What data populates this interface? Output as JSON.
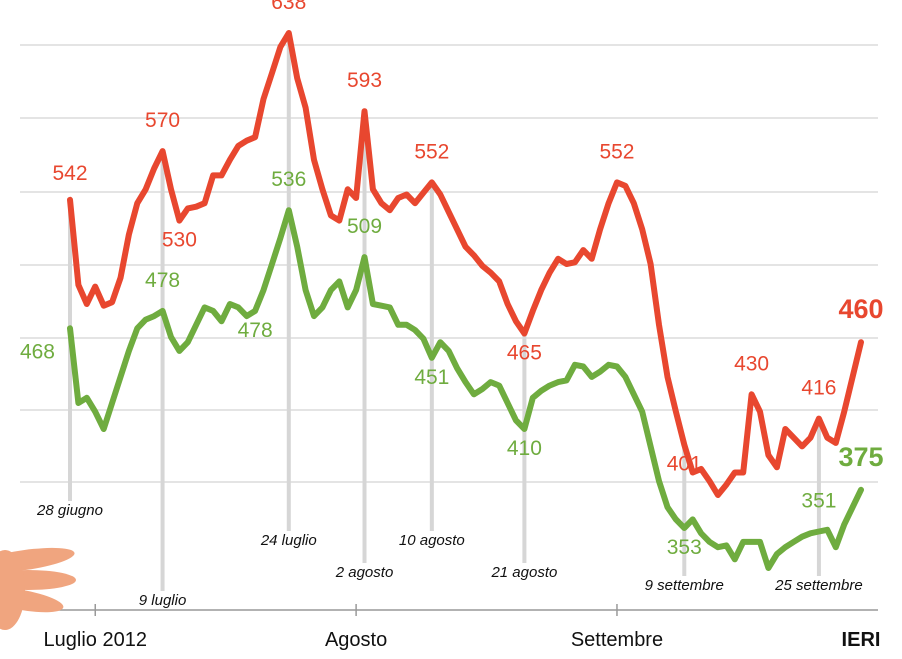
{
  "chart_data": {
    "type": "line",
    "categories": [
      "28 giugno",
      null,
      null,
      null,
      null,
      null,
      null,
      null,
      null,
      null,
      null,
      "9 luglio",
      null,
      null,
      null,
      null,
      null,
      null,
      null,
      null,
      null,
      null,
      null,
      null,
      null,
      null,
      "24 luglio",
      null,
      null,
      null,
      null,
      null,
      null,
      null,
      null,
      "2 agosto",
      null,
      null,
      null,
      null,
      null,
      null,
      null,
      "10 agosto",
      null,
      null,
      null,
      null,
      null,
      null,
      null,
      null,
      null,
      null,
      "21 agosto",
      null,
      null,
      null,
      null,
      null,
      null,
      null,
      null,
      null,
      null,
      null,
      null,
      null,
      null,
      null,
      null,
      null,
      null,
      "9 settembre",
      null,
      null,
      null,
      null,
      null,
      null,
      null,
      null,
      null,
      null,
      null,
      null,
      null,
      null,
      null,
      "25 settembre",
      null,
      null,
      null,
      null,
      null
    ],
    "months": [
      null,
      null,
      null,
      "Luglio 2012",
      null,
      null,
      null,
      null,
      null,
      null,
      null,
      null,
      null,
      null,
      null,
      null,
      null,
      null,
      null,
      null,
      null,
      null,
      null,
      null,
      null,
      null,
      null,
      null,
      null,
      null,
      null,
      null,
      null,
      null,
      "Agosto",
      null,
      null,
      null,
      null,
      null,
      null,
      null,
      null,
      null,
      null,
      null,
      null,
      null,
      null,
      null,
      null,
      null,
      null,
      null,
      null,
      null,
      null,
      null,
      null,
      null,
      null,
      null,
      null,
      null,
      null,
      "Settembre",
      null,
      null,
      null,
      null,
      null,
      null,
      null,
      null,
      null,
      null,
      null,
      null,
      null,
      null,
      null,
      null,
      null,
      null,
      null,
      null,
      null,
      null,
      null,
      null,
      null,
      null,
      null,
      null,
      "IERI"
    ],
    "series": [
      {
        "color": "#e8472f",
        "values": [
          542,
          493,
          482,
          492,
          481,
          483,
          497,
          522,
          540,
          548,
          560,
          570,
          548,
          530,
          537,
          538,
          540,
          556,
          556,
          565,
          573,
          576,
          578,
          600,
          615,
          630,
          638,
          612,
          595,
          565,
          548,
          533,
          530,
          548,
          543,
          593,
          548,
          540,
          536,
          543,
          545,
          540,
          546,
          552,
          545,
          535,
          525,
          515,
          510,
          504,
          500,
          495,
          482,
          472,
          465,
          478,
          490,
          500,
          508,
          505,
          506,
          513,
          508,
          525,
          540,
          552,
          550,
          540,
          525,
          505,
          470,
          440,
          420,
          401,
          385,
          387,
          380,
          372,
          378,
          385,
          385,
          430,
          420,
          395,
          388,
          410,
          405,
          400,
          405,
          416,
          405,
          402,
          420,
          440,
          460
        ],
        "value_labels": [
          "542",
          null,
          null,
          null,
          null,
          null,
          null,
          null,
          null,
          null,
          null,
          "570",
          null,
          "530",
          null,
          null,
          null,
          null,
          null,
          null,
          null,
          null,
          null,
          null,
          null,
          null,
          "638",
          null,
          null,
          null,
          null,
          null,
          null,
          null,
          null,
          "593",
          null,
          null,
          null,
          null,
          null,
          null,
          null,
          "552",
          null,
          null,
          null,
          null,
          null,
          null,
          null,
          null,
          null,
          null,
          "465",
          null,
          null,
          null,
          null,
          null,
          null,
          null,
          null,
          null,
          null,
          "552",
          null,
          null,
          null,
          null,
          null,
          null,
          null,
          "401",
          null,
          null,
          null,
          null,
          null,
          null,
          null,
          "430",
          null,
          null,
          null,
          null,
          null,
          null,
          null,
          "416",
          null,
          null,
          null,
          null,
          "460"
        ]
      },
      {
        "color": "#6fac3f",
        "values": [
          468,
          425,
          428,
          420,
          410,
          425,
          440,
          455,
          468,
          473,
          475,
          478,
          463,
          455,
          460,
          470,
          480,
          478,
          472,
          482,
          480,
          475,
          478,
          490,
          505,
          520,
          536,
          515,
          490,
          475,
          480,
          490,
          495,
          480,
          490,
          509,
          482,
          481,
          480,
          470,
          470,
          467,
          462,
          451,
          460,
          455,
          445,
          437,
          430,
          433,
          437,
          435,
          425,
          415,
          410,
          428,
          432,
          435,
          437,
          438,
          447,
          446,
          440,
          443,
          447,
          446,
          440,
          430,
          420,
          400,
          380,
          365,
          358,
          353,
          358,
          350,
          345,
          342,
          343,
          335,
          345,
          345,
          345,
          330,
          338,
          342,
          345,
          348,
          350,
          351,
          352,
          342,
          355,
          365,
          375
        ],
        "value_labels": [
          "468",
          null,
          null,
          null,
          null,
          null,
          null,
          null,
          null,
          null,
          null,
          "478",
          null,
          null,
          null,
          null,
          null,
          null,
          null,
          null,
          null,
          null,
          "478",
          null,
          null,
          null,
          "536",
          null,
          null,
          null,
          null,
          null,
          null,
          null,
          null,
          "509",
          null,
          null,
          null,
          null,
          null,
          null,
          null,
          "451",
          null,
          null,
          null,
          null,
          null,
          null,
          null,
          null,
          null,
          null,
          "410",
          null,
          null,
          null,
          null,
          null,
          null,
          null,
          null,
          null,
          null,
          null,
          null,
          null,
          null,
          null,
          null,
          null,
          null,
          "353",
          null,
          null,
          null,
          null,
          null,
          null,
          null,
          null,
          null,
          null,
          null,
          null,
          null,
          null,
          null,
          "351",
          null,
          null,
          null,
          null,
          "375"
        ]
      }
    ]
  }
}
